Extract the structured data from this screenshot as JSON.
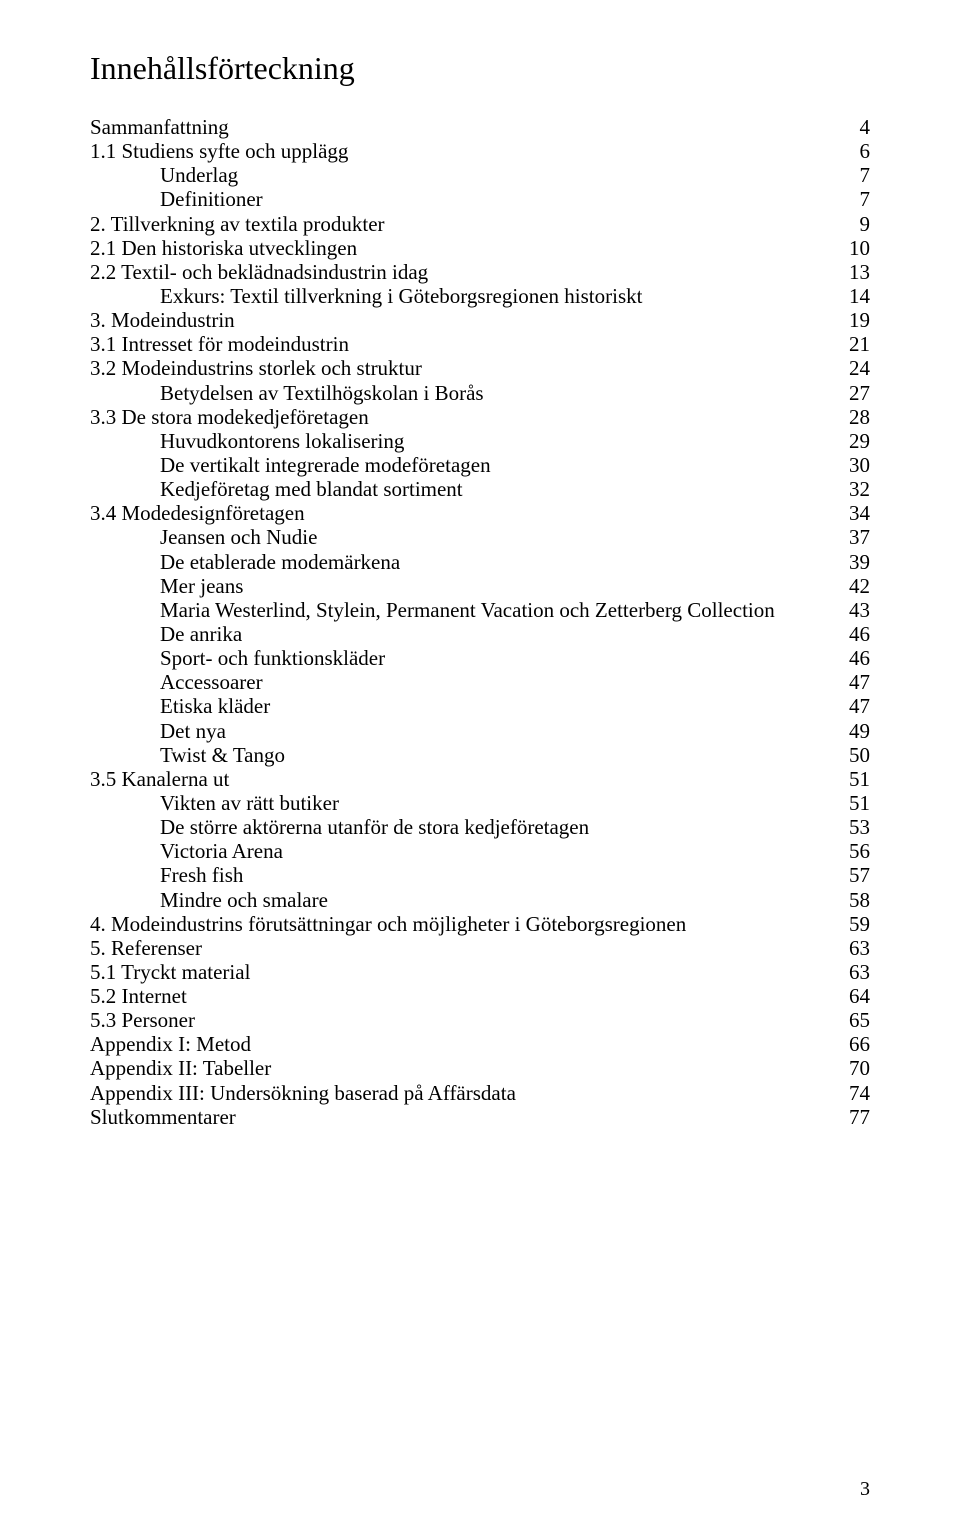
{
  "title": "Innehållsförteckning",
  "page_number": "3",
  "toc": [
    {
      "label": "Sammanfattning",
      "page": "4",
      "indent": 0
    },
    {
      "label": "1.1 Studiens syfte och upplägg",
      "page": "6",
      "indent": 0
    },
    {
      "label": "Underlag",
      "page": "7",
      "indent": 1
    },
    {
      "label": "Definitioner",
      "page": "7",
      "indent": 1
    },
    {
      "label": "2. Tillverkning av textila produkter",
      "page": "9",
      "indent": 0
    },
    {
      "label": "2.1 Den historiska utvecklingen",
      "page": "10",
      "indent": 0
    },
    {
      "label": "2.2 Textil- och beklädnadsindustrin idag",
      "page": "13",
      "indent": 0
    },
    {
      "label": "Exkurs: Textil tillverkning i Göteborgsregionen historiskt",
      "page": "14",
      "indent": 1
    },
    {
      "label": "3. Modeindustrin",
      "page": "19",
      "indent": 0
    },
    {
      "label": "3.1 Intresset för modeindustrin",
      "page": "21",
      "indent": 0
    },
    {
      "label": "3.2 Modeindustrins storlek och struktur",
      "page": "24",
      "indent": 0
    },
    {
      "label": "Betydelsen av Textilhögskolan i Borås",
      "page": "27",
      "indent": 1
    },
    {
      "label": "3.3 De stora modekedjeföretagen",
      "page": "28",
      "indent": 0
    },
    {
      "label": "Huvudkontorens lokalisering",
      "page": "29",
      "indent": 1
    },
    {
      "label": "De vertikalt integrerade modeföretagen",
      "page": "30",
      "indent": 1
    },
    {
      "label": "Kedjeföretag med blandat sortiment",
      "page": "32",
      "indent": 1
    },
    {
      "label": "3.4 Modedesignföretagen",
      "page": "34",
      "indent": 0
    },
    {
      "label": "Jeansen och Nudie",
      "page": "37",
      "indent": 1
    },
    {
      "label": "De etablerade modemärkena",
      "page": "39",
      "indent": 1
    },
    {
      "label": "Mer jeans",
      "page": "42",
      "indent": 1
    },
    {
      "label": "Maria Westerlind, Stylein, Permanent Vacation och Zetterberg Collection",
      "page": "43",
      "indent": 1
    },
    {
      "label": "De anrika",
      "page": "46",
      "indent": 1
    },
    {
      "label": "Sport- och funktionskläder",
      "page": "46",
      "indent": 1
    },
    {
      "label": "Accessoarer",
      "page": "47",
      "indent": 1
    },
    {
      "label": "Etiska kläder",
      "page": "47",
      "indent": 1
    },
    {
      "label": "Det nya",
      "page": "49",
      "indent": 1
    },
    {
      "label": "Twist & Tango",
      "page": "50",
      "indent": 1
    },
    {
      "label": "3.5 Kanalerna ut",
      "page": "51",
      "indent": 0
    },
    {
      "label": "Vikten av rätt butiker",
      "page": "51",
      "indent": 1
    },
    {
      "label": "De större aktörerna utanför de stora kedjeföretagen",
      "page": "53",
      "indent": 1
    },
    {
      "label": "Victoria Arena",
      "page": "56",
      "indent": 1
    },
    {
      "label": "Fresh fish",
      "page": "57",
      "indent": 1
    },
    {
      "label": "Mindre och smalare",
      "page": "58",
      "indent": 1
    },
    {
      "label": "4. Modeindustrins förutsättningar och möjligheter i Göteborgsregionen",
      "page": "59",
      "indent": 0
    },
    {
      "label": "5. Referenser",
      "page": "63",
      "indent": 0
    },
    {
      "label": "5.1 Tryckt material",
      "page": "63",
      "indent": 0
    },
    {
      "label": "5.2 Internet",
      "page": "64",
      "indent": 0
    },
    {
      "label": "5.3 Personer",
      "page": "65",
      "indent": 0
    },
    {
      "label": "Appendix I: Metod",
      "page": "66",
      "indent": 0
    },
    {
      "label": "Appendix II: Tabeller",
      "page": "70",
      "indent": 0
    },
    {
      "label": "Appendix III: Undersökning baserad på Affärsdata",
      "page": "74",
      "indent": 0
    },
    {
      "label": "Slutkommentarer",
      "page": "77",
      "indent": 0
    }
  ]
}
